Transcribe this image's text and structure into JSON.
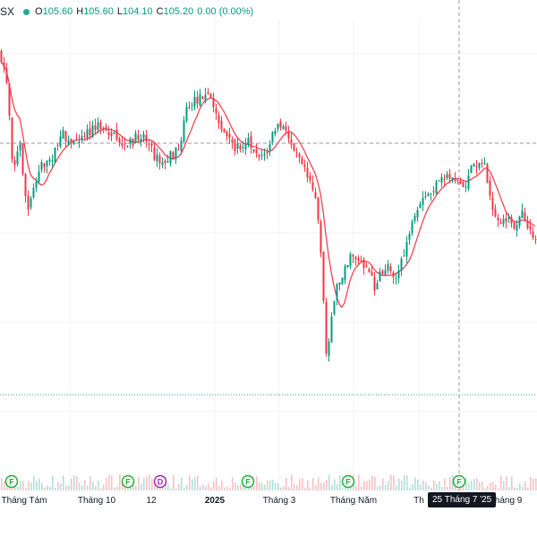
{
  "legend": {
    "symbol": "SX",
    "open_label": "O",
    "open": "105.60",
    "high_label": "H",
    "high": "105.60",
    "low_label": "L",
    "low": "104.10",
    "close_label": "C",
    "close": "105.20",
    "change": "0.00 (0.00%)",
    "status_color": "#26a69a"
  },
  "colors": {
    "up": "#089981",
    "down": "#f23645",
    "ma": "#f23645",
    "grid": "#e0e3eb",
    "crosshair": "#9598a1"
  },
  "x_axis": {
    "ticks": [
      {
        "label": "Tháng Tám",
        "bold": false
      },
      {
        "label": "Tháng 10",
        "bold": false
      },
      {
        "label": "12",
        "bold": false
      },
      {
        "label": "2025",
        "bold": true
      },
      {
        "label": "Tháng 3",
        "bold": false
      },
      {
        "label": "Tháng Năm",
        "bold": false
      },
      {
        "label": "Th",
        "bold": false
      },
      {
        "label": "Tháng 9",
        "bold": false
      }
    ],
    "crosshair_label": "25 Tháng 7 '25"
  },
  "markers": [
    {
      "letter": "F",
      "type": "dividend"
    },
    {
      "letter": "F",
      "type": "dividend"
    },
    {
      "letter": "D",
      "type": "split"
    },
    {
      "letter": "F",
      "type": "dividend"
    },
    {
      "letter": "F",
      "type": "dividend"
    },
    {
      "letter": "F",
      "type": "dividend"
    }
  ]
}
